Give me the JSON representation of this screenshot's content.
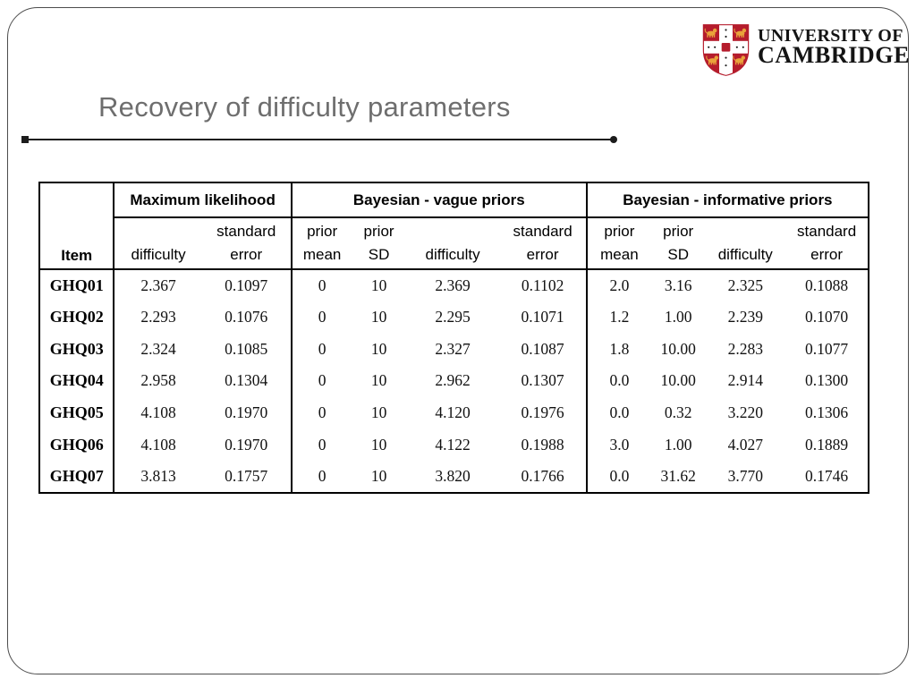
{
  "slide": {
    "title": "Recovery of difficulty parameters"
  },
  "logo": {
    "line1": "UNIVERSITY OF",
    "line2": "CAMBRIDGE",
    "shield_icon": "cambridge-coat-of-arms"
  },
  "colors": {
    "shield_red": "#b51c2c",
    "lion_gold": "#e9a23b",
    "title_gray": "#6e6e6e",
    "table_border": "#000000"
  },
  "table": {
    "item_header": "Item",
    "groups": [
      {
        "label": "Maximum likelihood",
        "colspan": 2
      },
      {
        "label": "Bayesian - vague priors",
        "colspan": 4
      },
      {
        "label": "Bayesian - informative priors",
        "colspan": 4
      }
    ],
    "columns": [
      {
        "top": "",
        "bottom": "difficulty"
      },
      {
        "top": "standard",
        "bottom": "error"
      },
      {
        "top": "prior",
        "bottom": "mean"
      },
      {
        "top": "prior",
        "bottom": "SD"
      },
      {
        "top": "",
        "bottom": "difficulty"
      },
      {
        "top": "standard",
        "bottom": "error"
      },
      {
        "top": "prior",
        "bottom": "mean"
      },
      {
        "top": "prior",
        "bottom": "SD"
      },
      {
        "top": "",
        "bottom": "difficulty"
      },
      {
        "top": "standard",
        "bottom": "error"
      }
    ],
    "rows": [
      {
        "item": "GHQ01",
        "values": [
          "2.367",
          "0.1097",
          "0",
          "10",
          "2.369",
          "0.1102",
          "2.0",
          "3.16",
          "2.325",
          "0.1088"
        ]
      },
      {
        "item": "GHQ02",
        "values": [
          "2.293",
          "0.1076",
          "0",
          "10",
          "2.295",
          "0.1071",
          "1.2",
          "1.00",
          "2.239",
          "0.1070"
        ]
      },
      {
        "item": "GHQ03",
        "values": [
          "2.324",
          "0.1085",
          "0",
          "10",
          "2.327",
          "0.1087",
          "1.8",
          "10.00",
          "2.283",
          "0.1077"
        ]
      },
      {
        "item": "GHQ04",
        "values": [
          "2.958",
          "0.1304",
          "0",
          "10",
          "2.962",
          "0.1307",
          "0.0",
          "10.00",
          "2.914",
          "0.1300"
        ]
      },
      {
        "item": "GHQ05",
        "values": [
          "4.108",
          "0.1970",
          "0",
          "10",
          "4.120",
          "0.1976",
          "0.0",
          "0.32",
          "3.220",
          "0.1306"
        ]
      },
      {
        "item": "GHQ06",
        "values": [
          "4.108",
          "0.1970",
          "0",
          "10",
          "4.122",
          "0.1988",
          "3.0",
          "1.00",
          "4.027",
          "0.1889"
        ]
      },
      {
        "item": "GHQ07",
        "values": [
          "3.813",
          "0.1757",
          "0",
          "10",
          "3.820",
          "0.1766",
          "0.0",
          "31.62",
          "3.770",
          "0.1746"
        ]
      }
    ]
  }
}
